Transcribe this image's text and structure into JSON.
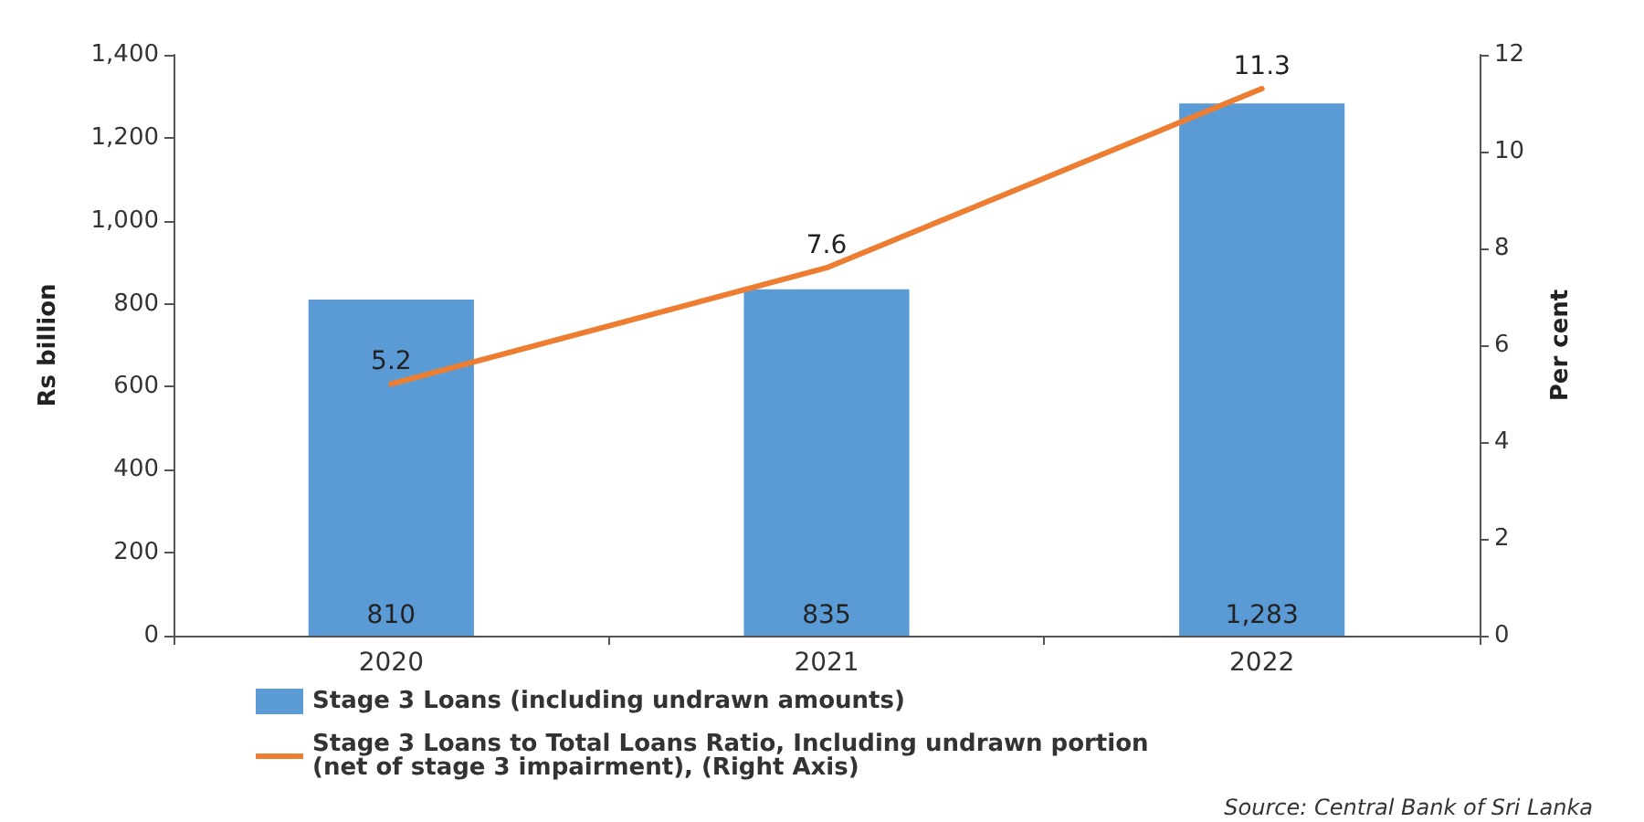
{
  "chart_data": {
    "type": "bar",
    "categories": [
      "2020",
      "2021",
      "2022"
    ],
    "series": [
      {
        "name": "Stage 3 Loans (including undrawn amounts)",
        "color": "#5b9bd5",
        "values": [
          810,
          835,
          1283
        ],
        "value_labels": [
          "810",
          "835",
          "1,283"
        ]
      },
      {
        "name": "Stage 3 Loans to Total Loans Ratio, Including undrawn portion (net of stage 3 impairment), (Right Axis)",
        "type": "line",
        "axis": "y2",
        "color": "#ed7d31",
        "values": [
          5.2,
          7.6,
          11.3
        ]
      }
    ],
    "ylabel": "Rs billion",
    "y2label": "Per cent",
    "ylim": [
      0,
      1400
    ],
    "yticks": [
      0,
      200,
      400,
      600,
      800,
      {
        "value": 1000,
        "label": "1,000"
      },
      {
        "value": 1200,
        "label": "1,200"
      },
      {
        "value": 1400,
        "label": "1,400"
      }
    ],
    "y2lim": [
      0,
      12
    ],
    "y2ticks": [
      0,
      2,
      4,
      6,
      8,
      10,
      12
    ],
    "data_labels": true,
    "legend": "bottom",
    "marker": "none",
    "grid": false,
    "annotations": [
      "Source: Central Bank of Sri Lanka"
    ]
  }
}
